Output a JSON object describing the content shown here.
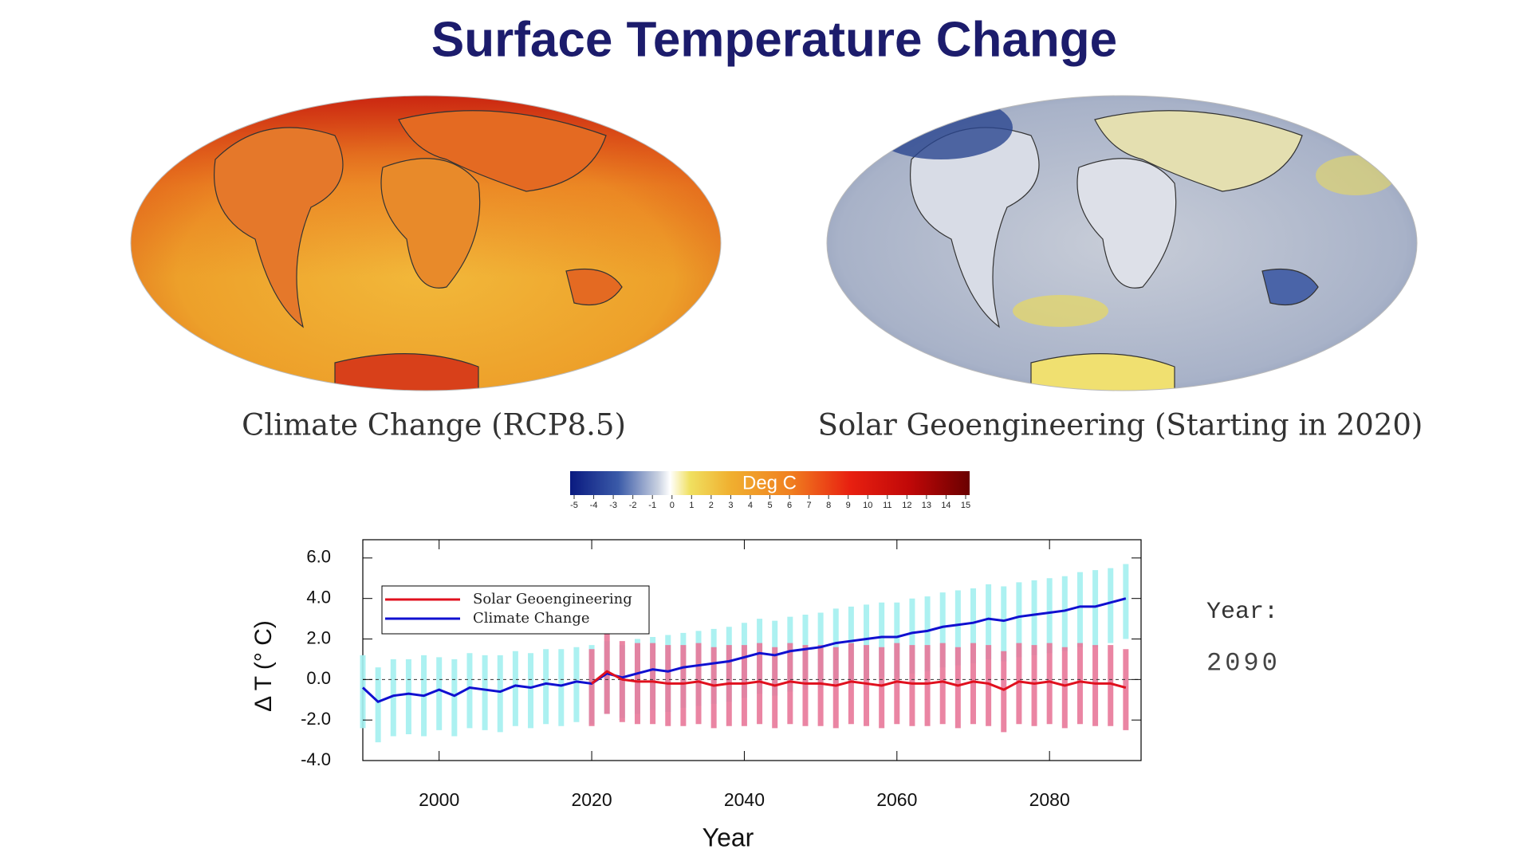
{
  "title": "Surface Temperature Change",
  "maps": [
    {
      "caption": "Climate Change (RCP8.5)"
    },
    {
      "caption": "Solar Geoengineering (Starting in 2020)"
    }
  ],
  "colorbar": {
    "label": "Deg C",
    "lim": [
      -5,
      15
    ],
    "ticks": [
      -5,
      -4,
      -3,
      -2,
      -1,
      0,
      1,
      2,
      3,
      4,
      5,
      6,
      7,
      8,
      9,
      10,
      11,
      12,
      13,
      14,
      15
    ]
  },
  "year_label": "Year:",
  "year_value": 2090,
  "chart_data": {
    "type": "line",
    "xlabel": "Year",
    "ylabel": "Δ T (° C)",
    "xlim": [
      1990,
      2092
    ],
    "ylim": [
      -4,
      6.9
    ],
    "xticks": [
      2000,
      2020,
      2040,
      2060,
      2080
    ],
    "yticks": [
      {
        "value": -4,
        "label": "-4.0"
      },
      {
        "value": -2,
        "label": "-2.0"
      },
      {
        "value": 0,
        "label": "0.0"
      },
      {
        "value": 2,
        "label": "2.0"
      },
      {
        "value": 4,
        "label": "4.0"
      },
      {
        "value": 6,
        "label": "6.0"
      }
    ],
    "legend": "upper left",
    "series": [
      {
        "name": "Solar Geoengineering",
        "color": "#e0101e",
        "band_color": "#e8789a",
        "x": [
          2020,
          2022,
          2024,
          2026,
          2028,
          2030,
          2032,
          2034,
          2036,
          2038,
          2040,
          2042,
          2044,
          2046,
          2048,
          2050,
          2052,
          2054,
          2056,
          2058,
          2060,
          2062,
          2064,
          2066,
          2068,
          2070,
          2072,
          2074,
          2076,
          2078,
          2080,
          2082,
          2084,
          2086,
          2088,
          2090
        ],
        "values": [
          -0.2,
          0.4,
          0.0,
          -0.1,
          -0.1,
          -0.2,
          -0.2,
          -0.1,
          -0.3,
          -0.2,
          -0.2,
          -0.1,
          -0.3,
          -0.1,
          -0.2,
          -0.2,
          -0.3,
          -0.1,
          -0.2,
          -0.3,
          -0.1,
          -0.2,
          -0.2,
          -0.1,
          -0.3,
          -0.1,
          -0.2,
          -0.5,
          -0.1,
          -0.2,
          -0.1,
          -0.3,
          -0.1,
          -0.2,
          -0.2,
          -0.4
        ],
        "high": [
          1.5,
          2.3,
          1.9,
          1.8,
          1.8,
          1.7,
          1.7,
          1.8,
          1.6,
          1.7,
          1.7,
          1.8,
          1.6,
          1.8,
          1.7,
          1.7,
          1.6,
          1.8,
          1.7,
          1.6,
          1.8,
          1.7,
          1.7,
          1.8,
          1.6,
          1.8,
          1.7,
          1.4,
          1.8,
          1.7,
          1.8,
          1.6,
          1.8,
          1.7,
          1.7,
          1.5
        ],
        "low": [
          -2.3,
          -1.7,
          -2.1,
          -2.2,
          -2.2,
          -2.3,
          -2.3,
          -2.2,
          -2.4,
          -2.3,
          -2.3,
          -2.2,
          -2.4,
          -2.2,
          -2.3,
          -2.3,
          -2.4,
          -2.2,
          -2.3,
          -2.4,
          -2.2,
          -2.3,
          -2.3,
          -2.2,
          -2.4,
          -2.2,
          -2.3,
          -2.6,
          -2.2,
          -2.3,
          -2.2,
          -2.4,
          -2.2,
          -2.3,
          -2.3,
          -2.5
        ]
      },
      {
        "name": "Climate Change",
        "color": "#1010d0",
        "band_color": "#a4f0f0",
        "x": [
          1990,
          1992,
          1994,
          1996,
          1998,
          2000,
          2002,
          2004,
          2006,
          2008,
          2010,
          2012,
          2014,
          2016,
          2018,
          2020,
          2022,
          2024,
          2026,
          2028,
          2030,
          2032,
          2034,
          2036,
          2038,
          2040,
          2042,
          2044,
          2046,
          2048,
          2050,
          2052,
          2054,
          2056,
          2058,
          2060,
          2062,
          2064,
          2066,
          2068,
          2070,
          2072,
          2074,
          2076,
          2078,
          2080,
          2082,
          2084,
          2086,
          2088,
          2090
        ],
        "values": [
          -0.4,
          -1.1,
          -0.8,
          -0.7,
          -0.8,
          -0.5,
          -0.8,
          -0.4,
          -0.5,
          -0.6,
          -0.3,
          -0.4,
          -0.2,
          -0.3,
          -0.1,
          -0.2,
          0.3,
          0.1,
          0.3,
          0.5,
          0.4,
          0.6,
          0.7,
          0.8,
          0.9,
          1.1,
          1.3,
          1.2,
          1.4,
          1.5,
          1.6,
          1.8,
          1.9,
          2.0,
          2.1,
          2.1,
          2.3,
          2.4,
          2.6,
          2.7,
          2.8,
          3.0,
          2.9,
          3.1,
          3.2,
          3.3,
          3.4,
          3.6,
          3.6,
          3.8,
          4.0
        ],
        "high": [
          1.2,
          0.6,
          1.0,
          1.0,
          1.2,
          1.1,
          1.0,
          1.3,
          1.2,
          1.2,
          1.4,
          1.3,
          1.5,
          1.5,
          1.6,
          1.7,
          1.9,
          1.7,
          2.0,
          2.1,
          2.2,
          2.3,
          2.4,
          2.5,
          2.6,
          2.8,
          3.0,
          2.9,
          3.1,
          3.2,
          3.3,
          3.5,
          3.6,
          3.7,
          3.8,
          3.8,
          4.0,
          4.1,
          4.3,
          4.4,
          4.5,
          4.7,
          4.6,
          4.8,
          4.9,
          5.0,
          5.1,
          5.3,
          5.4,
          5.5,
          5.7
        ],
        "low": [
          -2.4,
          -3.1,
          -2.8,
          -2.7,
          -2.8,
          -2.5,
          -2.8,
          -2.4,
          -2.5,
          -2.6,
          -2.3,
          -2.4,
          -2.2,
          -2.3,
          -2.1,
          -2.2,
          -1.7,
          -1.9,
          -1.7,
          -1.5,
          -1.6,
          -1.4,
          -1.3,
          -1.2,
          -1.1,
          -0.9,
          -0.7,
          -0.8,
          -0.6,
          -0.5,
          -0.4,
          -0.2,
          -0.1,
          0.0,
          0.1,
          0.1,
          0.3,
          0.4,
          0.6,
          0.7,
          0.8,
          1.0,
          0.9,
          1.1,
          1.2,
          1.3,
          1.4,
          1.6,
          1.6,
          1.8,
          2.0
        ]
      }
    ]
  }
}
